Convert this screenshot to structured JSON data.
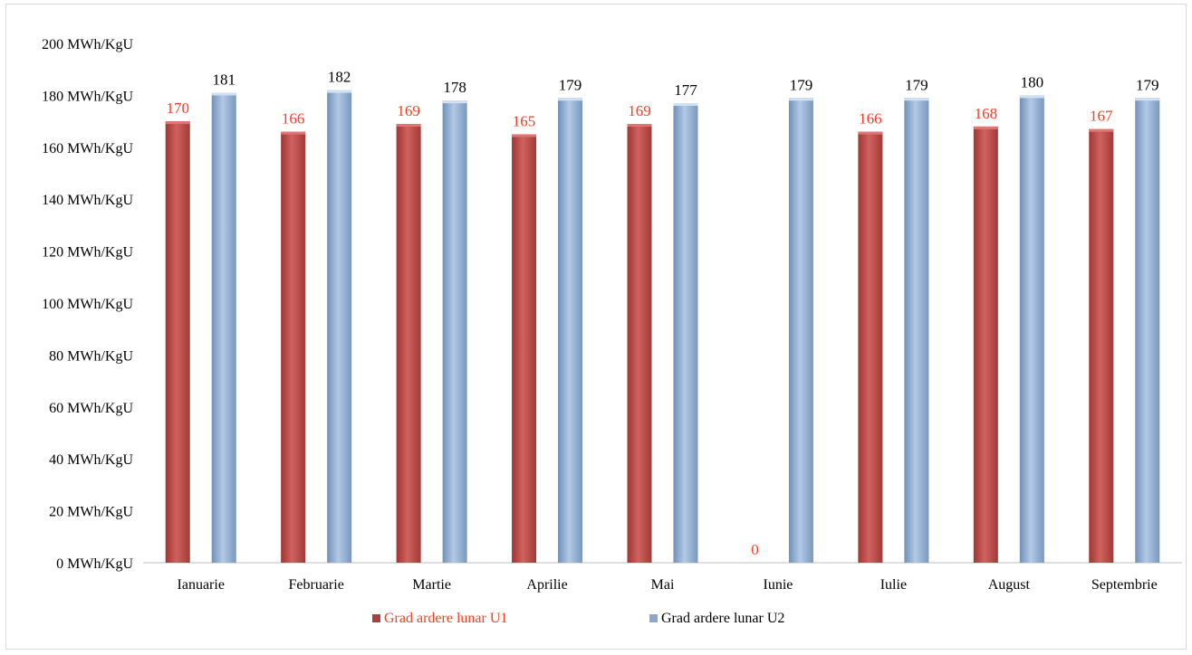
{
  "chart_data": {
    "type": "bar",
    "categories": [
      "Ianuarie",
      "Februarie",
      "Martie",
      "Aprilie",
      "Mai",
      "Iunie",
      "Iulie",
      "August",
      "Septembrie"
    ],
    "series": [
      {
        "name": "Grad ardere lunar U1",
        "values": [
          170,
          166,
          169,
          165,
          169,
          0,
          166,
          168,
          167
        ],
        "color": "#c0504d",
        "label_color": "#ff3b1f"
      },
      {
        "name": "Grad ardere lunar U2",
        "values": [
          181,
          182,
          178,
          179,
          177,
          179,
          179,
          180,
          179
        ],
        "color": "#95b3d7",
        "label_color": "#000000"
      }
    ],
    "ylim": [
      0,
      200
    ],
    "y_ticks": [
      0,
      20,
      40,
      60,
      80,
      100,
      120,
      140,
      160,
      180,
      200
    ],
    "y_tick_labels": [
      "0 MWh/KgU",
      "20 MWh/KgU",
      "40 MWh/KgU",
      "60 MWh/KgU",
      "80 MWh/KgU",
      "100 MWh/KgU",
      "120 MWh/KgU",
      "140 MWh/KgU",
      "160 MWh/KgU",
      "180 MWh/KgU",
      "200 MWh/KgU"
    ],
    "grid": false,
    "legend_position": "bottom",
    "title": "",
    "xlabel": "",
    "ylabel": ""
  }
}
